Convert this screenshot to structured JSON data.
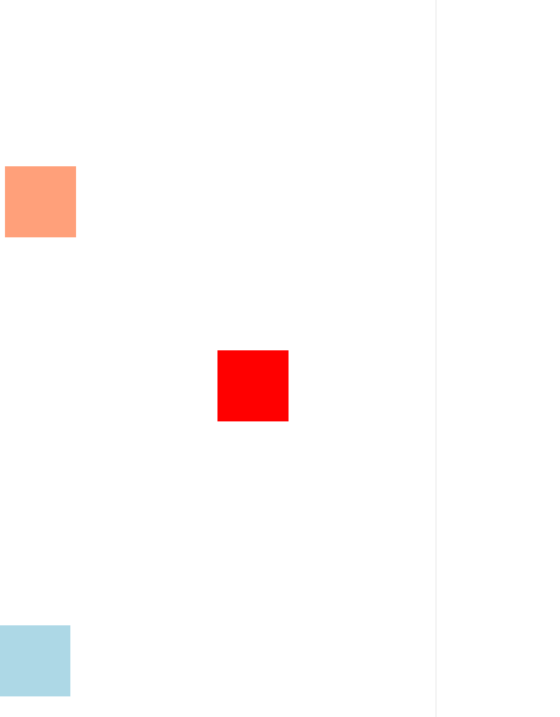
{
  "colors": {
    "background": "#ffffff",
    "divider": "#e4e4e4",
    "block_salmon": "#ffa07a",
    "block_red": "#ff0000",
    "block_light_blue": "#add8e6"
  }
}
